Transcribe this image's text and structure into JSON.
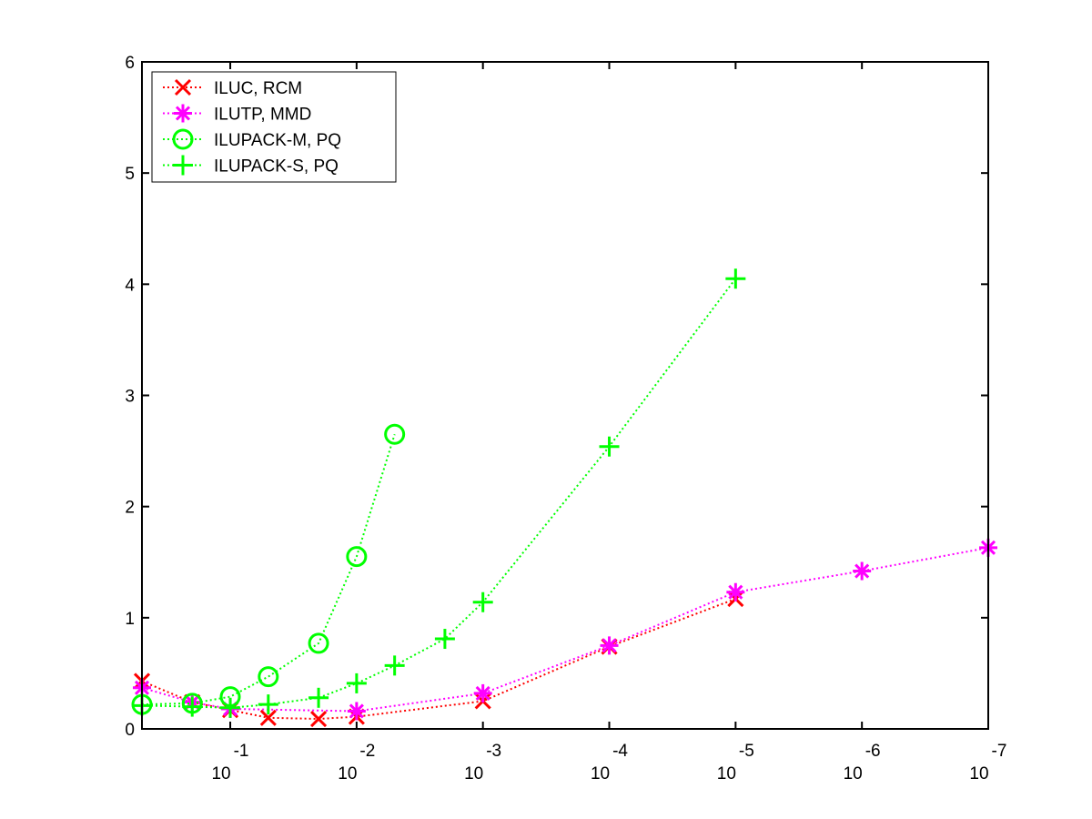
{
  "chart_data": {
    "type": "line",
    "title": "",
    "xlabel": "",
    "ylabel": "",
    "xscale": "log",
    "x_direction": "decreasing",
    "xlim": [
      0.5,
      1e-07
    ],
    "ylim": [
      0,
      6
    ],
    "grid": false,
    "legend_position": "top-left",
    "y_ticks": [
      "0",
      "1",
      "2",
      "3",
      "4",
      "5",
      "6"
    ],
    "x_ticks": [
      {
        "value": 0.1,
        "base": "10",
        "exp": "-1"
      },
      {
        "value": 0.01,
        "base": "10",
        "exp": "-2"
      },
      {
        "value": 0.001,
        "base": "10",
        "exp": "-3"
      },
      {
        "value": 0.0001,
        "base": "10",
        "exp": "-4"
      },
      {
        "value": 1e-05,
        "base": "10",
        "exp": "-5"
      },
      {
        "value": 1e-06,
        "base": "10",
        "exp": "-6"
      },
      {
        "value": 1e-07,
        "base": "10",
        "exp": "-7"
      }
    ],
    "series": [
      {
        "name": "ILUC, RCM",
        "color": "#ff0000",
        "marker": "x",
        "x": [
          0.5,
          0.2,
          0.1,
          0.05,
          0.02,
          0.01,
          0.001,
          0.0001,
          1e-05
        ],
        "y": [
          0.43,
          0.24,
          0.17,
          0.1,
          0.09,
          0.11,
          0.25,
          0.74,
          1.17
        ]
      },
      {
        "name": "ILUTP, MMD",
        "color": "#ff00ff",
        "marker": "asterisk",
        "x": [
          0.5,
          0.2,
          0.1,
          0.01,
          0.001,
          0.0001,
          1e-05,
          1e-06,
          1e-07
        ],
        "y": [
          0.37,
          0.24,
          0.18,
          0.16,
          0.32,
          0.75,
          1.23,
          1.42,
          1.63
        ]
      },
      {
        "name": "ILUPACK-M, PQ",
        "color": "#00ff00",
        "marker": "circle",
        "x": [
          0.5,
          0.2,
          0.1,
          0.05,
          0.02,
          0.01,
          0.005
        ],
        "y": [
          0.22,
          0.23,
          0.29,
          0.47,
          0.77,
          1.55,
          2.65
        ]
      },
      {
        "name": "ILUPACK-S, PQ",
        "color": "#00ff00",
        "marker": "plus",
        "x": [
          0.5,
          0.2,
          0.1,
          0.05,
          0.02,
          0.01,
          0.005,
          0.002,
          0.001,
          0.0001,
          1e-05
        ],
        "y": [
          0.21,
          0.2,
          0.19,
          0.22,
          0.28,
          0.41,
          0.57,
          0.81,
          1.14,
          2.54,
          4.05
        ]
      }
    ]
  }
}
